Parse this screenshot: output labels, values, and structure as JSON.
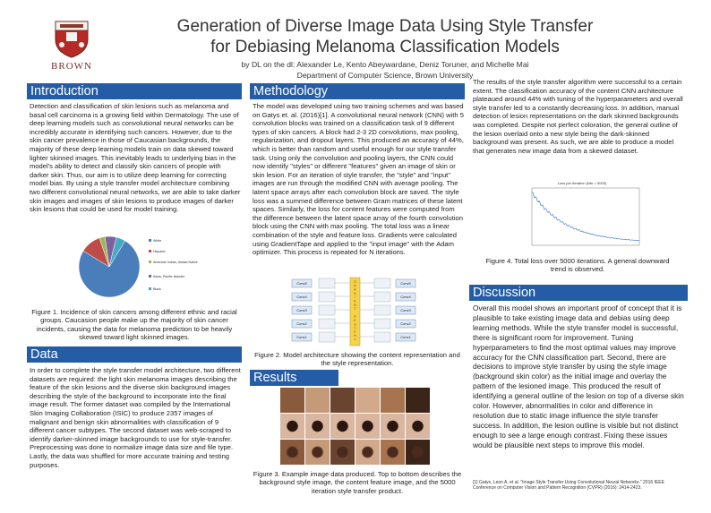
{
  "header": {
    "title_line1": "Generation of Diverse Image Data Using Style Transfer",
    "title_line2": "for Debiasing Melanoma Classification Models",
    "authors_line1": "by DL on the dl: Alexander Le, Kento Abeywardane, Deniz Toruner, and Michelle Mai",
    "authors_line2": "Department of Computer Science, Brown University",
    "logo_text": "BROWN"
  },
  "introduction": {
    "heading": "Introduction",
    "text": "Detection and classification of skin lesions such as melanoma and basal cell carcinoma is a growing field within Dermatology. The use of deep learning models such as convolutional neural networks can be incredibly accurate in identifying such cancers. However, due to the skin cancer prevalence in those of Caucasian backgrounds, the majority of these deep learning models train on data skewed toward lighter skinned images. This inevitably leads to underlying bias in the model's ability to detect and classify skin cancers of people with darker skin. Thus, our aim is to utilize deep learning for correcting model bias. By using a style transfer model architecture combining two different convolutional neural networks, we are able to take darker skin images and images of skin lesions to produce images of darker skin lesions that could be used for model training.",
    "fig1_caption": "Figure 1. Incidence of skin cancers among different ethnic and racial groups. Caucasion people  make up the majority of skin cancer incidents, causing the data for melanoma prediction to be heavily skewed toward light skinned images."
  },
  "data_section": {
    "heading": "Data",
    "text": "In order to complete the style transfer model architecture, two different datasets are required: the light skin melanoma images describing the feature of the skin lesions and the diverse skin background images describing the style of the background to incorporate into the final image result. The former dataset was compiled by the International Skin Imaging Collaboration (ISIC) to produce 2357 images of malignant and benign skin abnormalities with classification of 9 different cancer subtypes. The second dataset was web-scraped to identify darker-skinned image backgrounds to use for style-transfer. Preprocessing was done to normalize image data size and file type. Lastly, the data was shuffled for more accurate training and testing purposes."
  },
  "methodology": {
    "heading": "Methodology",
    "text": "The model was developed using two training schemes and was based on Gatys et. al. (2016)[1]. A convolutional neural network (CNN) with 5 convolution blocks was trained on a classification task of 9 different types of skin cancers. A block had 2-3 2D convolutions, max pooling, regularization, and dropout layers. This produced an accuracy of 44%, which is better than random and useful enough for our style transfer task. Using only the convolution and pooling layers, the CNN could now identify \"styles\" or  different \"features\" given an image of skin or skin lesion. For an iteration of style transfer, the \"style\" and \"input\" images are run through the modified CNN with average pooling. The latent space arrays after each convolution block are saved. The style loss was a summed difference between Gram matrices of these latent spaces. Similarly, the loss for content features were computed from the difference between the latent space array of the fourth convolution block using the CNN with max pooling. The total loss was a linear combination of the style and feature loss. Gradients were calculated using GradientTape and applied to the \"input image\" with the Adam optimizer. This process is repeated for N iterations.",
    "fig2_caption": "Figure 2. Model architecture showing the content representation and the style representation."
  },
  "results": {
    "heading": "Results",
    "fig3_caption": "Figure 3. Example image data produced. Top to bottom describes the background style image, the content feature image, and the 5000 iteration style transfer product."
  },
  "right_column": {
    "text": "The results of the style transfer algorithm were successful to a certain extent. The classification accuracy of the content CNN architecture plateaued around 44% with tuning of the hyperparameters and overall style transfer led to a constantly decreasing loss. In addition, manual detection of lesion representations on the dark skinned backgrounds was completed. Despite not perfect coloration, the general outline of the lesion overlaid onto a new style being the dark-skinned background was present. As such, we are able to produce a model that generates new image data from a skewed dataset.",
    "fig4_caption": "Figure 4. Total loss over 5000 iterations. A general downward trend is observed.",
    "fig4_plot_title": "Loss per Iteration (Nbr = 5000)"
  },
  "discussion": {
    "heading": "Discussion",
    "text": "Overall this model shows an important proof of concept that it is plausible to take existing image data and debias using deep learning methods. While the style transfer model is successful, there is significant room for improvement. Tuning hyperparameters to find the most optimal values may improve accuracy for the CNN classification part. Second, there are decisions to improve style transfer by using the style image (background skin color) as the initial image and overlay the pattern of the lesioned image. This produced the result of identifying a general outline of the lesion on top of a diverse skin color. However, abnormalities in color and difference in resolution due to static image influence the style transfer success. In addition, the lesion outline is visible but not distinct enough to see a large enough contrast. Fixing these issues would be plausible next steps to improve this model.",
    "reference": "[1] Gatys, Leon A. et al. \"Image Style Transfer Using Convolutional Neural Networks.\" 2016 IEEE Conference on Computer Vision and Pattern Recognition (CVPR) (2016): 2414-2423."
  },
  "pie": {
    "legend": [
      "White",
      "Hispanic",
      "American Indian, Alaska Native",
      "Asian, Pacific Islander",
      "Black"
    ],
    "values": [
      75,
      11,
      3,
      6,
      5
    ],
    "colors": [
      "#4a7ebb",
      "#be4b48",
      "#98b954",
      "#7d60a0",
      "#46aac5"
    ]
  },
  "arch": {
    "left_blocks": [
      "Conv5",
      "Conv4",
      "Conv3",
      "Conv2",
      "Conv1"
    ],
    "right_blocks": [
      "Conv5",
      "Conv4",
      "Conv3",
      "Conv2",
      "Conv1"
    ],
    "center_label": "GRADIENT DESCENT"
  },
  "colors": {
    "section_header": "#245da6",
    "brown_red": "#7a2e2e"
  }
}
